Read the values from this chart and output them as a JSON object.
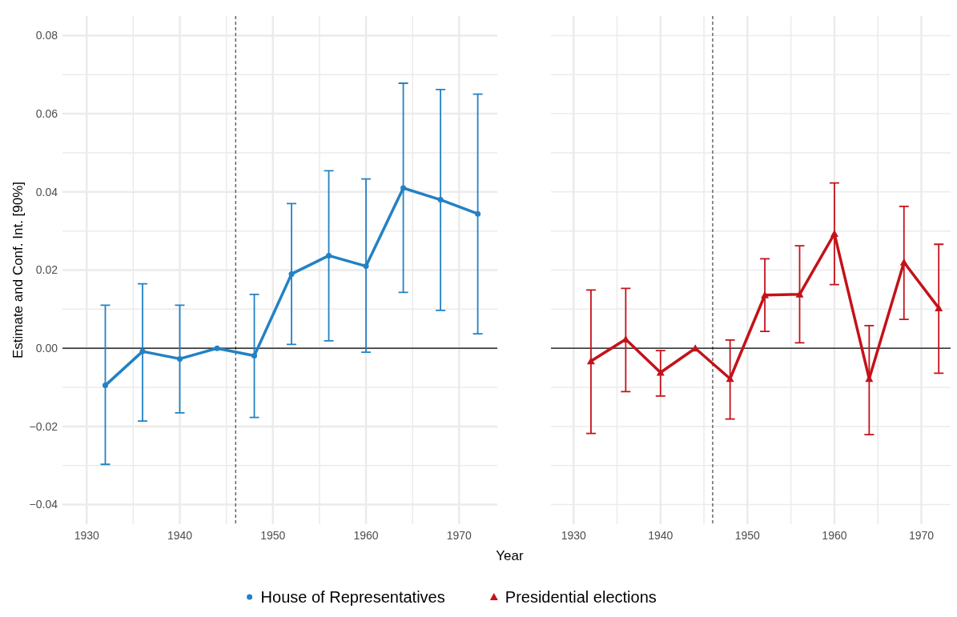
{
  "chart_data": [
    {
      "type": "line",
      "ylabel": "Estimate and Conf. Int. [90%]",
      "xlabel": "Year",
      "x": [
        1932,
        1936,
        1940,
        1944,
        1948,
        1952,
        1956,
        1960,
        1964,
        1968,
        1972
      ],
      "series": [
        {
          "name": "House of Representatives",
          "color": "#2381c4",
          "values": [
            -0.0095,
            -0.0008,
            -0.0027,
            0,
            -0.0019,
            0.019,
            0.0237,
            0.021,
            0.041,
            0.038,
            0.0344
          ],
          "errors": [
            [
              -0.0297,
              0.011
            ],
            [
              -0.0186,
              0.0165
            ],
            [
              -0.0165,
              0.011
            ],
            null,
            [
              -0.0177,
              0.0138
            ],
            [
              0.001,
              0.037
            ],
            [
              0.0019,
              0.0454
            ],
            [
              -0.001,
              0.0433
            ],
            [
              0.0143,
              0.0678
            ],
            [
              0.0097,
              0.0662
            ],
            [
              0.0037,
              0.065
            ]
          ]
        }
      ],
      "marker": "circle",
      "xlim": [
        1927.4,
        1974.1
      ],
      "ylim": [
        -0.045,
        0.085
      ],
      "xticks": [
        1930,
        {
          "value": 1935,
          "label": null
        },
        1940,
        {
          "value": 1945,
          "label": null
        },
        1950,
        {
          "value": 1955,
          "label": null
        },
        1960,
        {
          "value": 1965,
          "label": null
        },
        1970
      ],
      "yticks": [
        {
          "value": -0.04,
          "label": "−0.04"
        },
        {
          "value": -0.03,
          "label": null
        },
        {
          "value": -0.02,
          "label": "−0.02"
        },
        {
          "value": -0.01,
          "label": null
        },
        {
          "value": 0,
          "label": "0.00"
        },
        {
          "value": 0.01,
          "label": null
        },
        {
          "value": 0.02,
          "label": "0.02"
        },
        {
          "value": 0.03,
          "label": null
        },
        {
          "value": 0.04,
          "label": "0.04"
        },
        {
          "value": 0.05,
          "label": null
        },
        {
          "value": 0.06,
          "label": "0.06"
        },
        {
          "value": 0.07,
          "label": null
        },
        {
          "value": 0.08,
          "label": "0.08"
        }
      ],
      "grid": true,
      "legend": "bottom",
      "ref_lines": [
        {
          "axis": "x",
          "value": 1946,
          "color": "#444444",
          "line_style": "dashed"
        },
        {
          "axis": "y",
          "value": 0,
          "color": "#000000",
          "line_style": "solid"
        }
      ]
    },
    {
      "type": "line",
      "x": [
        1932,
        1936,
        1940,
        1944,
        1948,
        1952,
        1956,
        1960,
        1964,
        1968,
        1972
      ],
      "series": [
        {
          "name": "Presidential elections",
          "color": "#c4121a",
          "values": [
            -0.0033,
            0.0023,
            -0.0062,
            0,
            -0.0078,
            0.0136,
            0.0138,
            0.0293,
            -0.0078,
            0.022,
            0.0103
          ],
          "errors": [
            [
              -0.0218,
              0.0149
            ],
            [
              -0.0111,
              0.0153
            ],
            [
              -0.0122,
              -0.0006
            ],
            null,
            [
              -0.0181,
              0.0021
            ],
            [
              0.0043,
              0.0229
            ],
            [
              0.0014,
              0.0262
            ],
            [
              0.0163,
              0.0423
            ],
            [
              -0.0221,
              0.0058
            ],
            [
              0.0074,
              0.0363
            ],
            [
              -0.0064,
              0.0266
            ]
          ]
        }
      ],
      "marker": "triangle",
      "xlim": [
        1927.4,
        1974.1
      ],
      "ylim": [
        -0.045,
        0.085
      ],
      "tick_labels": "x",
      "xticks": [
        1930,
        {
          "value": 1935,
          "label": null
        },
        1940,
        {
          "value": 1945,
          "label": null
        },
        1950,
        {
          "value": 1955,
          "label": null
        },
        1960,
        {
          "value": 1965,
          "label": null
        },
        1970
      ],
      "yticks": [
        {
          "value": -0.04,
          "label": null
        },
        {
          "value": -0.03,
          "label": null
        },
        {
          "value": -0.02,
          "label": null
        },
        {
          "value": -0.01,
          "label": null
        },
        {
          "value": 0,
          "label": null
        },
        {
          "value": 0.01,
          "label": null
        },
        {
          "value": 0.02,
          "label": null
        },
        {
          "value": 0.03,
          "label": null
        },
        {
          "value": 0.04,
          "label": null
        },
        {
          "value": 0.05,
          "label": null
        },
        {
          "value": 0.06,
          "label": null
        },
        {
          "value": 0.07,
          "label": null
        },
        {
          "value": 0.08,
          "label": null
        }
      ],
      "grid": true,
      "legend": "bottom",
      "ref_lines": [
        {
          "axis": "x",
          "value": 1946,
          "color": "#444444",
          "line_style": "dashed"
        },
        {
          "axis": "y",
          "value": 0,
          "color": "#000000",
          "line_style": "solid"
        }
      ]
    }
  ]
}
